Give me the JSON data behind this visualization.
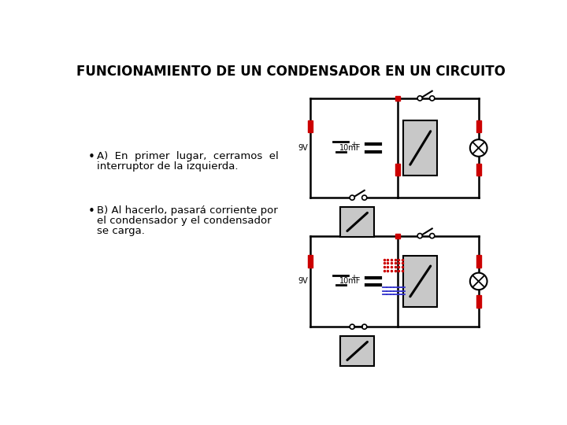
{
  "title": "FUNCIONAMIENTO DE UN CONDENSADOR EN UN CIRCUITO",
  "title_fontsize": 12,
  "title_fontweight": "bold",
  "background_color": "#ffffff",
  "bullet1_line1": "A)  En  primer  lugar,  cerramos  el",
  "bullet1_line2": "interruptor de la izquierda.",
  "bullet2_line1": "B) Al hacerlo, pasará corriente por",
  "bullet2_line2": "el condensador y el condensador",
  "bullet2_line3": "se carga.",
  "text_fontsize": 9.5,
  "red_color": "#cc0000",
  "blue_color": "#3333cc",
  "black_color": "#000000",
  "gray_color": "#c8c8c8",
  "white_color": "#ffffff"
}
